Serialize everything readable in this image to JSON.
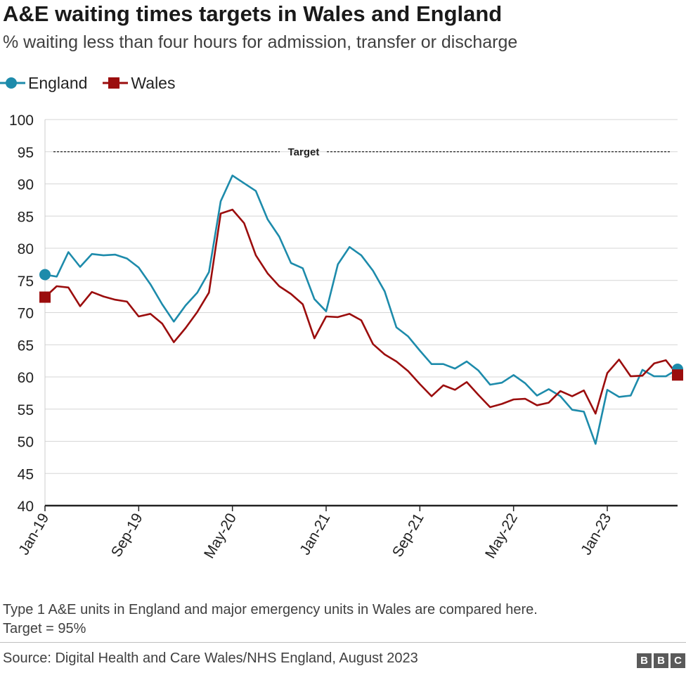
{
  "header": {
    "title": "A&E waiting times targets in Wales and England",
    "subtitle": "% waiting less than four hours for admission, transfer or discharge"
  },
  "legend": [
    {
      "name": "England",
      "color": "#1d8bab",
      "marker": "circle"
    },
    {
      "name": "Wales",
      "color": "#9b0d0d",
      "marker": "square"
    }
  ],
  "footer": {
    "note_line1": "Type 1 A&E units in England and major emergency units in Wales are compared here.",
    "note_line2": "Target = 95%",
    "source": "Source: Digital Health and Care Wales/NHS England, August 2023",
    "logo": [
      "B",
      "B",
      "C"
    ]
  },
  "chart_data": {
    "type": "line",
    "title": "A&E waiting times targets in Wales and England",
    "subtitle": "% waiting less than four hours for admission, transfer or discharge",
    "xlabel": "",
    "ylabel": "",
    "ylim": [
      40,
      100
    ],
    "yticks": [
      40,
      45,
      50,
      55,
      60,
      65,
      70,
      75,
      80,
      85,
      90,
      95,
      100
    ],
    "xticks": [
      {
        "label": "Jan-19",
        "index": 0
      },
      {
        "label": "Sep-19",
        "index": 8
      },
      {
        "label": "May-20",
        "index": 16
      },
      {
        "label": "Jan-21",
        "index": 24
      },
      {
        "label": "Sep-21",
        "index": 32
      },
      {
        "label": "May-22",
        "index": 40
      },
      {
        "label": "Jan-23",
        "index": 48
      }
    ],
    "x": [
      "Jan-19",
      "Feb-19",
      "Mar-19",
      "Apr-19",
      "May-19",
      "Jun-19",
      "Jul-19",
      "Aug-19",
      "Sep-19",
      "Oct-19",
      "Nov-19",
      "Dec-19",
      "Jan-20",
      "Feb-20",
      "Mar-20",
      "Apr-20",
      "May-20",
      "Jun-20",
      "Jul-20",
      "Aug-20",
      "Sep-20",
      "Oct-20",
      "Nov-20",
      "Dec-20",
      "Jan-21",
      "Feb-21",
      "Mar-21",
      "Apr-21",
      "May-21",
      "Jun-21",
      "Jul-21",
      "Aug-21",
      "Sep-21",
      "Oct-21",
      "Nov-21",
      "Dec-21",
      "Jan-22",
      "Feb-22",
      "Mar-22",
      "Apr-22",
      "May-22",
      "Jun-22",
      "Jul-22",
      "Aug-22",
      "Sep-22",
      "Oct-22",
      "Nov-22",
      "Dec-22",
      "Jan-23",
      "Feb-23",
      "Mar-23",
      "Apr-23",
      "May-23",
      "Jun-23",
      "Jul-23"
    ],
    "series": [
      {
        "name": "England",
        "color": "#1d8bab",
        "values": [
          75.9,
          75.6,
          79.4,
          77.1,
          79.1,
          78.9,
          79.0,
          78.4,
          77.0,
          74.4,
          71.3,
          68.6,
          71.1,
          73.1,
          76.3,
          87.3,
          91.3,
          90.1,
          88.9,
          84.5,
          81.8,
          77.7,
          76.9,
          72.1,
          70.2,
          77.5,
          80.2,
          78.9,
          76.5,
          73.3,
          67.7,
          66.3,
          64.1,
          62.0,
          62.0,
          61.3,
          62.4,
          61.0,
          58.8,
          59.1,
          60.3,
          59.0,
          57.1,
          58.1,
          57.0,
          54.9,
          54.6,
          49.6,
          58.0,
          56.9,
          57.1,
          61.1,
          60.1,
          60.1,
          61.2
        ]
      },
      {
        "name": "Wales",
        "color": "#9b0d0d",
        "values": [
          72.4,
          74.1,
          73.9,
          71.0,
          73.2,
          72.5,
          72.0,
          71.7,
          69.4,
          69.8,
          68.3,
          65.4,
          67.6,
          70.1,
          73.1,
          85.4,
          86.0,
          83.9,
          78.9,
          76.1,
          74.1,
          72.9,
          71.3,
          66.0,
          69.4,
          69.3,
          69.8,
          68.8,
          65.1,
          63.5,
          62.4,
          60.9,
          58.9,
          57.0,
          58.7,
          58.0,
          59.2,
          57.2,
          55.3,
          55.8,
          56.5,
          56.6,
          55.6,
          56.0,
          57.8,
          57.0,
          57.9,
          54.3,
          60.6,
          62.7,
          60.1,
          60.2,
          62.1,
          62.6,
          60.3
        ]
      }
    ],
    "reference_line": {
      "value": 95,
      "label": "Target"
    },
    "grid": true,
    "legend_position": "top-left"
  }
}
